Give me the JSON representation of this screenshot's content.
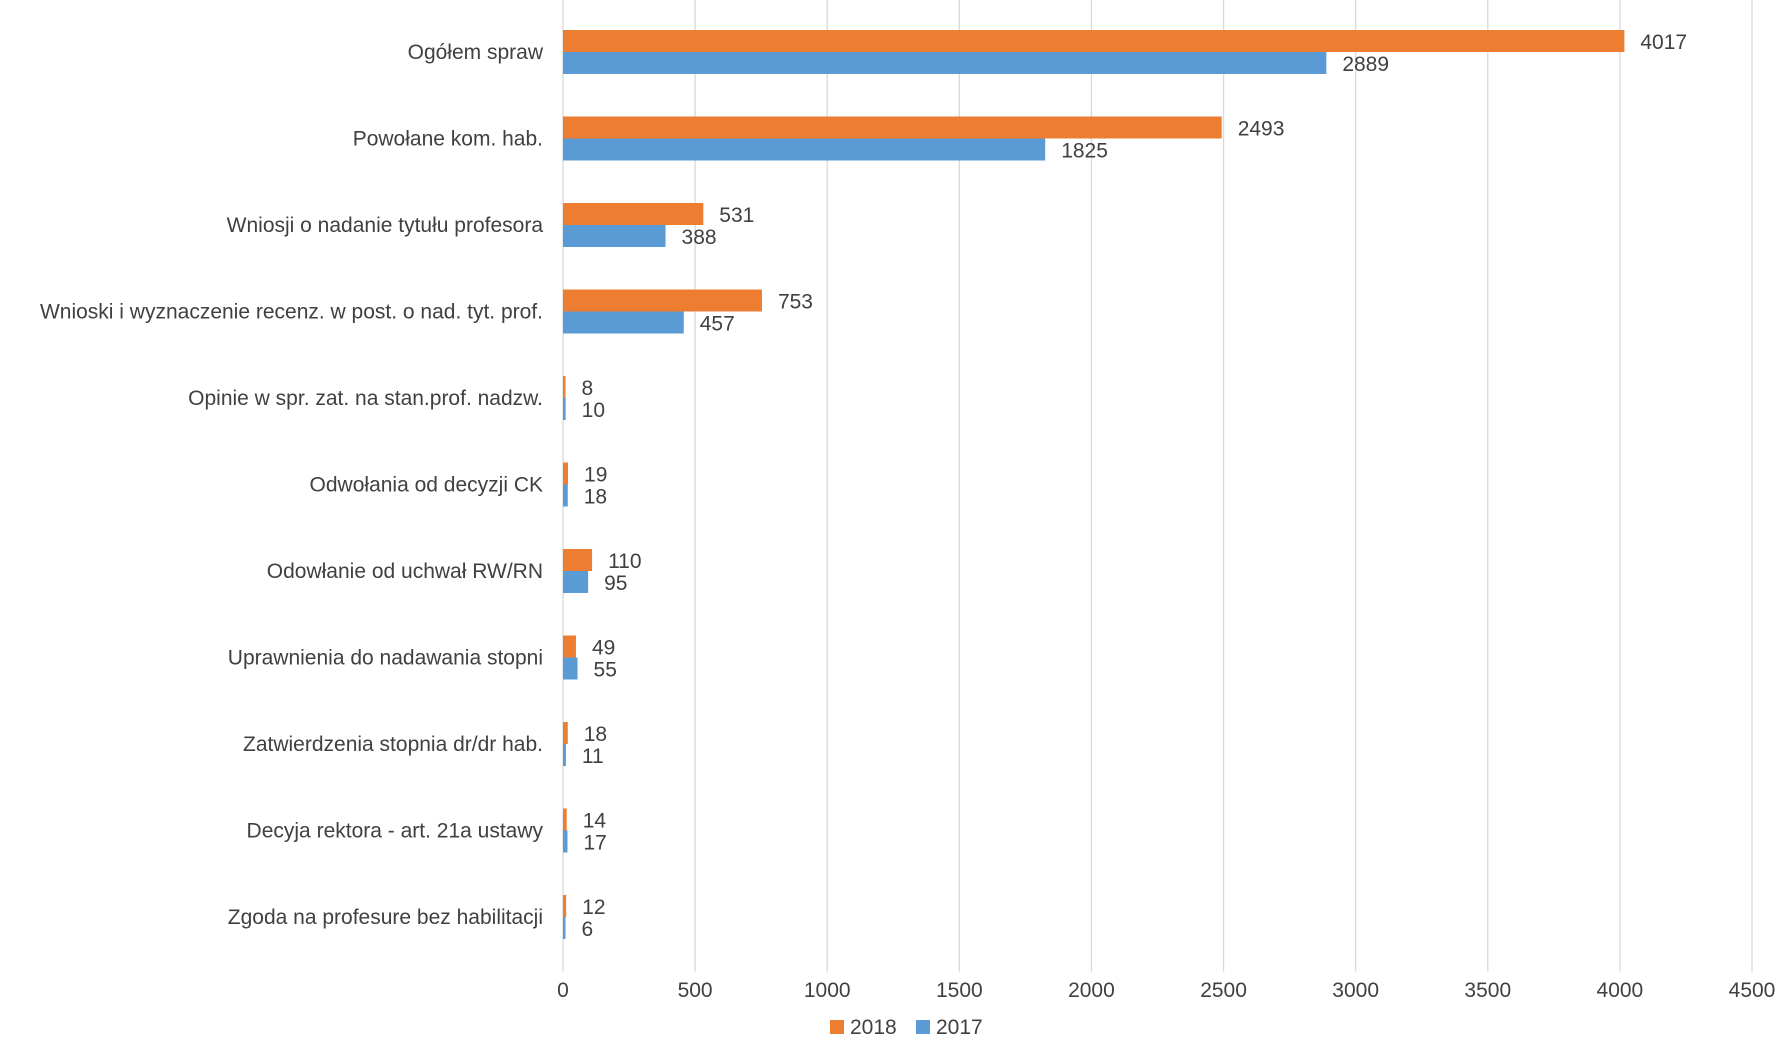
{
  "chart_data": {
    "type": "bar",
    "orientation": "horizontal",
    "categories": [
      "Ogółem spraw",
      "Powołane kom. hab.",
      "Wniosji o nadanie tytułu profesora",
      "Wnioski i wyznaczenie recenz. w post. o nad. tyt. prof.",
      "Opinie w spr. zat. na stan.prof. nadzw.",
      "Odwołania od decyzji CK",
      "Odowłanie od uchwał  RW/RN",
      "Uprawnienia do nadawania stopni",
      "Zatwierdzenia stopnia dr/dr hab.",
      "Decyja rektora - art. 21a ustawy",
      "Zgoda na profesure bez habilitacji"
    ],
    "series": [
      {
        "name": "2018",
        "color": "#ED7D31",
        "values": [
          4017,
          2493,
          531,
          753,
          8,
          19,
          110,
          49,
          18,
          14,
          12
        ]
      },
      {
        "name": "2017",
        "color": "#5B9BD5",
        "values": [
          2889,
          1825,
          388,
          457,
          10,
          18,
          95,
          55,
          11,
          17,
          6
        ]
      }
    ],
    "xlim": [
      0,
      4500
    ],
    "x_ticks": [
      "0",
      "500",
      "1000",
      "1500",
      "2000",
      "2500",
      "3000",
      "3500",
      "4000",
      "4500"
    ],
    "title": "",
    "xlabel": "",
    "ylabel": "",
    "grid": "vertical",
    "data_labels": true,
    "legend_position": "bottom-center",
    "gridline_color": "#D9D9D9",
    "text_color": "#404040"
  }
}
